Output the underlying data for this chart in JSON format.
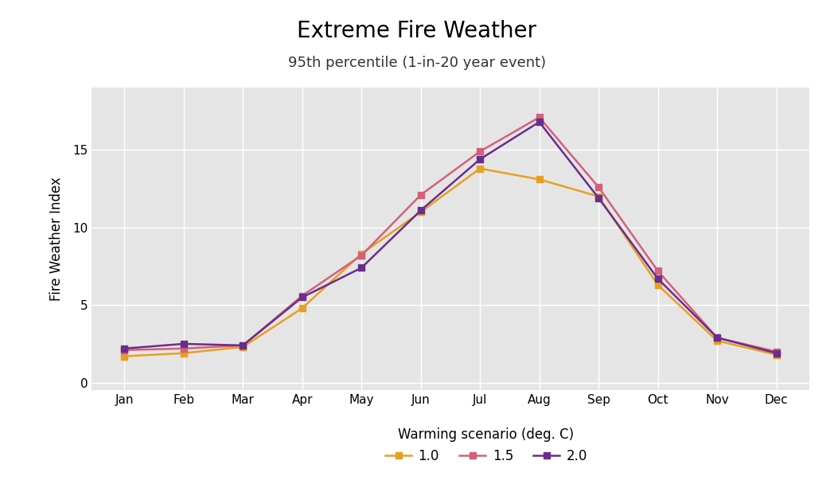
{
  "title": "Extreme Fire Weather",
  "subtitle": "95th percentile (1-in-20 year event)",
  "ylabel": "Fire Weather Index",
  "months": [
    "Jan",
    "Feb",
    "Mar",
    "Apr",
    "May",
    "Jun",
    "Jul",
    "Aug",
    "Sep",
    "Oct",
    "Nov",
    "Dec"
  ],
  "series": {
    "1.0": [
      1.7,
      1.9,
      2.3,
      4.8,
      8.3,
      11.0,
      13.8,
      13.1,
      12.0,
      6.3,
      2.7,
      1.8
    ],
    "1.5": [
      2.1,
      2.2,
      2.4,
      5.6,
      8.2,
      12.1,
      14.9,
      17.1,
      12.6,
      7.2,
      2.9,
      2.0
    ],
    "2.0": [
      2.2,
      2.5,
      2.4,
      5.5,
      7.4,
      11.1,
      14.4,
      16.8,
      11.9,
      6.7,
      2.9,
      1.9
    ]
  },
  "colors": {
    "1.0": "#E8A020",
    "1.5": "#D4607A",
    "2.0": "#6B2D8B"
  },
  "legend_label": "Warming scenario (deg. C)",
  "ylim": [
    -0.5,
    19
  ],
  "yticks": [
    0,
    5,
    10,
    15
  ],
  "background_color": "#E5E5E5",
  "grid_color": "#FFFFFF",
  "marker": "s",
  "markersize": 6,
  "linewidth": 1.8,
  "title_fontsize": 20,
  "subtitle_fontsize": 13,
  "axis_label_fontsize": 12,
  "tick_fontsize": 11,
  "legend_fontsize": 12
}
